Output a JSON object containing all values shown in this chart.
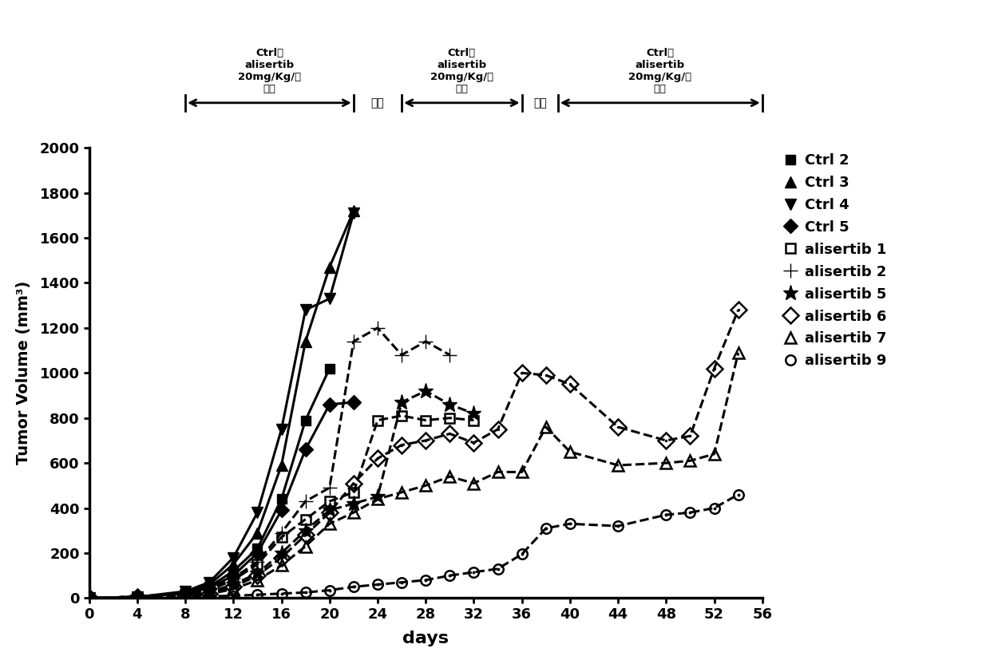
{
  "title": "",
  "xlabel": "days",
  "ylabel": "Tumor Volume (mm³)",
  "xlim": [
    0,
    56
  ],
  "ylim": [
    0,
    2000
  ],
  "xticks": [
    0,
    4,
    8,
    12,
    16,
    20,
    24,
    28,
    32,
    36,
    40,
    44,
    48,
    52,
    56
  ],
  "yticks": [
    0,
    200,
    400,
    600,
    800,
    1000,
    1200,
    1400,
    1600,
    1800,
    2000
  ],
  "series": [
    {
      "label": "Ctrl 2",
      "x": [
        0,
        4,
        8,
        10,
        12,
        14,
        16,
        18,
        20
      ],
      "y": [
        0,
        5,
        20,
        50,
        120,
        220,
        440,
        790,
        1020
      ],
      "linestyle": "solid",
      "marker": "s",
      "fillstyle": "full",
      "markersize": 9
    },
    {
      "label": "Ctrl 3",
      "x": [
        0,
        4,
        8,
        10,
        12,
        14,
        16,
        18,
        20,
        22
      ],
      "y": [
        0,
        5,
        25,
        60,
        150,
        290,
        590,
        1140,
        1470,
        1720
      ],
      "linestyle": "solid",
      "marker": "^",
      "fillstyle": "full",
      "markersize": 10
    },
    {
      "label": "Ctrl 4",
      "x": [
        0,
        4,
        8,
        10,
        12,
        14,
        16,
        18,
        20,
        22
      ],
      "y": [
        0,
        5,
        30,
        70,
        180,
        380,
        750,
        1280,
        1330,
        1710
      ],
      "linestyle": "solid",
      "marker": "v",
      "fillstyle": "full",
      "markersize": 10
    },
    {
      "label": "Ctrl 5",
      "x": [
        0,
        4,
        8,
        10,
        12,
        14,
        16,
        18,
        20,
        22
      ],
      "y": [
        0,
        5,
        20,
        45,
        100,
        200,
        390,
        660,
        860,
        870
      ],
      "linestyle": "solid",
      "marker": "D",
      "fillstyle": "full",
      "markersize": 9
    },
    {
      "label": "alisertib 1",
      "x": [
        0,
        4,
        8,
        10,
        12,
        14,
        16,
        18,
        20,
        22,
        24,
        26,
        28,
        30,
        32
      ],
      "y": [
        0,
        5,
        15,
        35,
        80,
        150,
        270,
        350,
        430,
        470,
        790,
        810,
        790,
        800,
        790
      ],
      "linestyle": "dashed",
      "marker": "s",
      "fillstyle": "none",
      "markersize": 9
    },
    {
      "label": "alisertib 2",
      "x": [
        0,
        4,
        8,
        10,
        12,
        14,
        16,
        18,
        20,
        22,
        24,
        26,
        28,
        30
      ],
      "y": [
        0,
        5,
        18,
        40,
        90,
        160,
        290,
        430,
        490,
        1140,
        1200,
        1080,
        1140,
        1080
      ],
      "linestyle": "dashed",
      "marker": "+",
      "fillstyle": "full",
      "markersize": 13
    },
    {
      "label": "alisertib 5",
      "x": [
        0,
        4,
        8,
        10,
        12,
        14,
        16,
        18,
        20,
        22,
        24,
        26,
        28,
        30,
        32
      ],
      "y": [
        0,
        5,
        12,
        28,
        60,
        110,
        200,
        300,
        390,
        420,
        450,
        870,
        920,
        860,
        820
      ],
      "linestyle": "dashed",
      "marker": "*",
      "fillstyle": "full",
      "markersize": 14
    },
    {
      "label": "alisertib 6",
      "x": [
        0,
        4,
        8,
        10,
        12,
        14,
        16,
        18,
        20,
        22,
        24,
        26,
        28,
        30,
        32,
        34,
        36,
        38,
        40,
        44,
        48,
        50,
        52,
        54
      ],
      "y": [
        0,
        5,
        10,
        20,
        50,
        100,
        180,
        280,
        380,
        510,
        620,
        680,
        700,
        730,
        690,
        750,
        1000,
        990,
        950,
        760,
        700,
        720,
        1020,
        1280
      ],
      "linestyle": "dashed",
      "marker": "D",
      "fillstyle": "none",
      "markersize": 10
    },
    {
      "label": "alisertib 7",
      "x": [
        0,
        4,
        8,
        10,
        12,
        14,
        16,
        18,
        20,
        22,
        24,
        26,
        28,
        30,
        32,
        34,
        36,
        38,
        40,
        44,
        48,
        50,
        52,
        54
      ],
      "y": [
        0,
        5,
        8,
        18,
        40,
        80,
        145,
        230,
        330,
        380,
        440,
        470,
        500,
        540,
        510,
        560,
        560,
        760,
        650,
        590,
        600,
        610,
        640,
        1090
      ],
      "linestyle": "dashed",
      "marker": "^",
      "fillstyle": "none",
      "markersize": 10
    },
    {
      "label": "alisertib 9",
      "x": [
        0,
        4,
        8,
        10,
        12,
        14,
        16,
        18,
        20,
        22,
        24,
        26,
        28,
        30,
        32,
        34,
        36,
        38,
        40,
        44,
        48,
        50,
        52,
        54
      ],
      "y": [
        0,
        5,
        5,
        8,
        10,
        15,
        20,
        25,
        35,
        50,
        60,
        70,
        80,
        100,
        115,
        130,
        195,
        310,
        330,
        320,
        370,
        380,
        400,
        460
      ],
      "linestyle": "dashed",
      "marker": "o",
      "fillstyle": "none",
      "markersize": 9
    }
  ],
  "block1_x1": 8,
  "block1_x2": 22,
  "block2_x1": 26,
  "block2_x2": 36,
  "block3_x1": 39,
  "block3_x2": 56,
  "stop1_x": 24.0,
  "stop2_x": 37.5,
  "block_label": "Ctrl或\nalisertib\n20mg/Kg/天\n灌胃",
  "stop_label": "停药",
  "background_color": "#ffffff",
  "font_color": "#000000"
}
